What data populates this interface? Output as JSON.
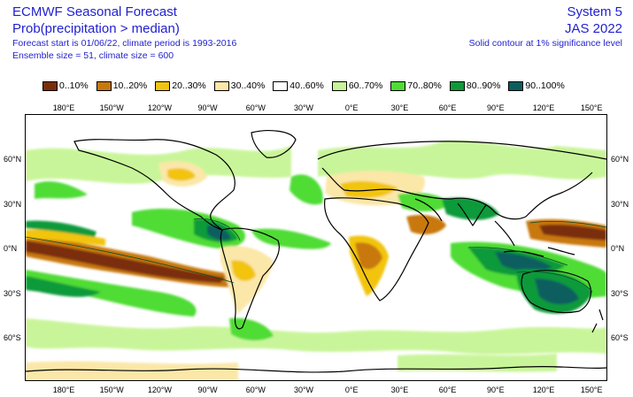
{
  "header": {
    "title": "ECMWF Seasonal Forecast",
    "subtitle": "Prob(precipitation > median)",
    "forecast_info": "Forecast start is 01/06/22, climate period is 1993-2016",
    "ensemble_info": "Ensemble size = 51, climate size = 600",
    "system": "System 5",
    "period": "JAS 2022",
    "contour_note": "Solid contour at 1% significance level"
  },
  "legend": [
    {
      "label": "0..10%",
      "color": "#7a2e08"
    },
    {
      "label": "10..20%",
      "color": "#c8780c"
    },
    {
      "label": "20..30%",
      "color": "#f2c411"
    },
    {
      "label": "30..40%",
      "color": "#fbe7a8"
    },
    {
      "label": "40..60%",
      "color": "#ffffff"
    },
    {
      "label": "60..70%",
      "color": "#c9f59a"
    },
    {
      "label": "70..80%",
      "color": "#4fdc34"
    },
    {
      "label": "80..90%",
      "color": "#0f9a3a"
    },
    {
      "label": "90..100%",
      "color": "#0b5e5e"
    }
  ],
  "axes": {
    "x_ticks": [
      "180°E",
      "150°W",
      "120°W",
      "90°W",
      "60°W",
      "30°W",
      "0°E",
      "30°E",
      "60°E",
      "90°E",
      "120°E",
      "150°E"
    ],
    "y_ticks": [
      "60°N",
      "30°N",
      "0°N",
      "30°S",
      "60°S"
    ]
  }
}
